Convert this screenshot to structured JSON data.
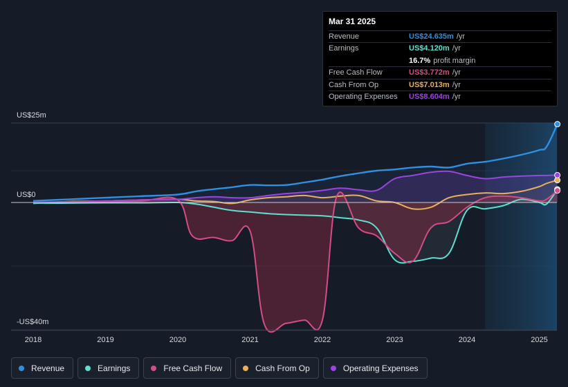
{
  "chart_data": {
    "type": "line",
    "title": "",
    "xlabel": "",
    "ylabel": "",
    "ylim": [
      -40,
      25
    ],
    "xlim": [
      2018,
      2025.25
    ],
    "y_ticks": [
      {
        "value": 25,
        "label": "US$25m"
      },
      {
        "value": 0,
        "label": "US$0"
      },
      {
        "value": -40,
        "label": "-US$40m"
      }
    ],
    "x_ticks": [
      "2018",
      "2019",
      "2020",
      "2021",
      "2022",
      "2023",
      "2024",
      "2025"
    ],
    "x_tick_values": [
      2018,
      2019,
      2020,
      2021,
      2022,
      2023,
      2024,
      2025
    ],
    "forecast_start": 2024.25,
    "series": [
      {
        "name": "Revenue",
        "color": "#2f8fe0",
        "x": [
          2018,
          2018.5,
          2019,
          2019.5,
          2020,
          2020.25,
          2020.5,
          2020.75,
          2021,
          2021.25,
          2021.5,
          2021.75,
          2022,
          2022.25,
          2022.5,
          2022.75,
          2023,
          2023.25,
          2023.5,
          2023.75,
          2024,
          2024.25,
          2024.5,
          2024.75,
          2025,
          2025.1,
          2025.25
        ],
        "values": [
          0.5,
          1.0,
          1.5,
          2.0,
          2.5,
          3.5,
          4.2,
          4.8,
          5.5,
          5.4,
          5.5,
          6.3,
          7.2,
          8.3,
          9.2,
          10.0,
          10.4,
          11.0,
          11.3,
          11.0,
          12.2,
          12.8,
          13.8,
          15.0,
          16.5,
          17.5,
          24.635
        ]
      },
      {
        "name": "Earnings",
        "color": "#5ee0d0",
        "x": [
          2018,
          2018.5,
          2019,
          2019.5,
          2020,
          2020.25,
          2020.5,
          2020.75,
          2021,
          2021.25,
          2021.5,
          2021.75,
          2022,
          2022.25,
          2022.5,
          2022.75,
          2023,
          2023.25,
          2023.5,
          2023.75,
          2024,
          2024.25,
          2024.5,
          2024.75,
          2025,
          2025.1,
          2025.25
        ],
        "values": [
          -0.2,
          -0.2,
          -0.1,
          -0.1,
          0,
          -0.5,
          -1.5,
          -2.5,
          -3,
          -3.5,
          -3.8,
          -4,
          -4.2,
          -4.8,
          -5.5,
          -8,
          -18,
          -18.5,
          -17.5,
          -16,
          -2.5,
          -2,
          -1,
          1,
          0,
          -0.5,
          4.12
        ]
      },
      {
        "name": "Free Cash Flow",
        "color": "#d34d87",
        "x": [
          2018,
          2018.5,
          2019,
          2019.5,
          2020,
          2020.2,
          2020.5,
          2020.75,
          2021,
          2021.2,
          2021.5,
          2021.75,
          2022,
          2022.2,
          2022.5,
          2022.75,
          2023,
          2023.25,
          2023.5,
          2023.75,
          2024,
          2024.25,
          2024.5,
          2024.75,
          2025,
          2025.1,
          2025.25
        ],
        "values": [
          0,
          0.2,
          0.3,
          0.5,
          0.8,
          -10.5,
          -11,
          -12,
          -9,
          -38.5,
          -38,
          -37,
          -37,
          2,
          -8,
          -10.5,
          -16,
          -18.5,
          -8,
          -6,
          -1.5,
          1.5,
          2,
          1.5,
          0.5,
          1,
          3.772
        ]
      },
      {
        "name": "Cash From Op",
        "color": "#e9b05c",
        "x": [
          2018,
          2018.5,
          2019,
          2019.5,
          2020,
          2020.25,
          2020.5,
          2020.75,
          2021,
          2021.25,
          2021.5,
          2021.75,
          2022,
          2022.25,
          2022.5,
          2022.75,
          2023,
          2023.25,
          2023.5,
          2023.75,
          2024,
          2024.25,
          2024.5,
          2024.75,
          2025,
          2025.1,
          2025.25
        ],
        "values": [
          -0.3,
          0.3,
          0.5,
          0.8,
          1.0,
          0.5,
          0.3,
          -0.3,
          0.8,
          1.5,
          1.8,
          2.2,
          1.5,
          2.0,
          2.2,
          0.5,
          0,
          -2,
          -1.5,
          1.5,
          2.5,
          3.0,
          2.8,
          3.5,
          5.0,
          6.0,
          7.013
        ]
      },
      {
        "name": "Operating Expenses",
        "color": "#9b45e0",
        "x": [
          2018,
          2018.5,
          2019,
          2019.5,
          2020,
          2020.25,
          2020.5,
          2020.75,
          2021,
          2021.25,
          2021.5,
          2021.75,
          2022,
          2022.25,
          2022.5,
          2022.75,
          2023,
          2023.25,
          2023.5,
          2023.75,
          2024,
          2024.25,
          2024.5,
          2024.75,
          2025,
          2025.1,
          2025.25
        ],
        "values": [
          0,
          0.2,
          0.5,
          0.8,
          1.0,
          1.5,
          1.8,
          1.5,
          1.5,
          2.2,
          2.8,
          3.2,
          3.8,
          4.5,
          4.0,
          3.8,
          7.5,
          8.5,
          9.5,
          9.8,
          8.5,
          7.5,
          8.0,
          8.3,
          8.5,
          8.5,
          8.604
        ]
      }
    ]
  },
  "tooltip": {
    "date": "Mar 31 2025",
    "revenue": {
      "label": "Revenue",
      "value": "US$24.635m",
      "unit": "/yr"
    },
    "earnings": {
      "label": "Earnings",
      "value": "US$4.120m",
      "unit": "/yr"
    },
    "margin": {
      "value": "16.7%",
      "unit": "profit margin"
    },
    "fcf": {
      "label": "Free Cash Flow",
      "value": "US$3.772m",
      "unit": "/yr"
    },
    "cfo": {
      "label": "Cash From Op",
      "value": "US$7.013m",
      "unit": "/yr"
    },
    "opex": {
      "label": "Operating Expenses",
      "value": "US$8.604m",
      "unit": "/yr"
    }
  },
  "legend": [
    {
      "label": "Revenue",
      "color": "#2f8fe0"
    },
    {
      "label": "Earnings",
      "color": "#5ee0d0"
    },
    {
      "label": "Free Cash Flow",
      "color": "#d34d87"
    },
    {
      "label": "Cash From Op",
      "color": "#e9b05c"
    },
    {
      "label": "Operating Expenses",
      "color": "#9b45e0"
    }
  ]
}
